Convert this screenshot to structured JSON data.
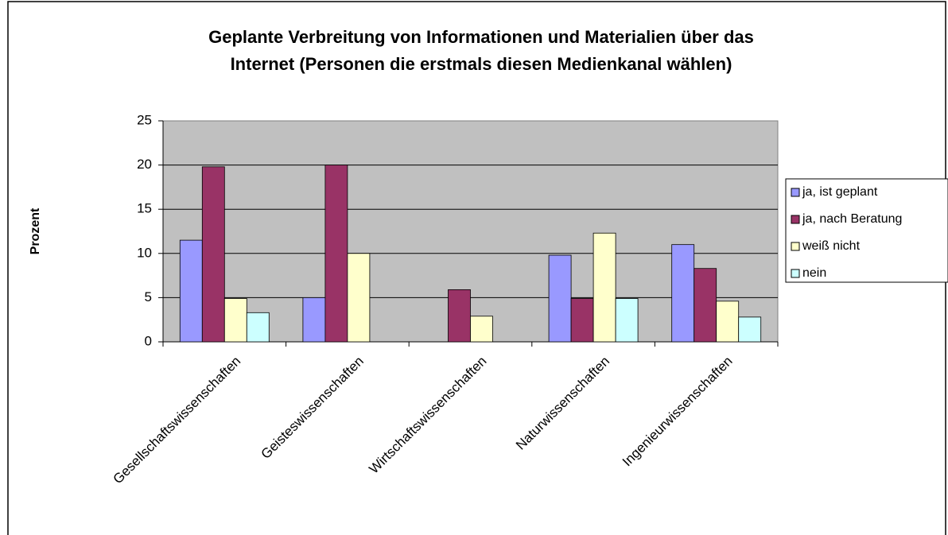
{
  "chart_data": {
    "type": "bar",
    "title": [
      "Geplante Verbreitung von Informationen und Materialien über das",
      "Internet (Personen die erstmals diesen Medienkanal wählen)"
    ],
    "y_label": "Prozent",
    "categories": [
      "Gesellschaftswissenschaften",
      "Geisteswissenschaften",
      "Wirtschaftswissenschaften",
      "Naturwissenschaften",
      "Ingenieurwissenschaften"
    ],
    "series": [
      {
        "name": "ja, ist geplant",
        "color": "#9999ff",
        "values": [
          11.5,
          5.0,
          0,
          9.8,
          11.0
        ]
      },
      {
        "name": "ja, nach Beratung",
        "color": "#993366",
        "values": [
          19.8,
          20.0,
          5.9,
          4.9,
          8.3
        ]
      },
      {
        "name": "weiß nicht",
        "color": "#ffffcc",
        "values": [
          4.9,
          10.0,
          2.9,
          12.3,
          4.6
        ]
      },
      {
        "name": "nein",
        "color": "#ccffff",
        "values": [
          3.3,
          0,
          0,
          4.9,
          2.8
        ]
      }
    ],
    "ylim": [
      0,
      25
    ],
    "yticks": [
      0,
      5,
      10,
      15,
      20,
      25
    ],
    "grid": true,
    "legend": "right"
  }
}
